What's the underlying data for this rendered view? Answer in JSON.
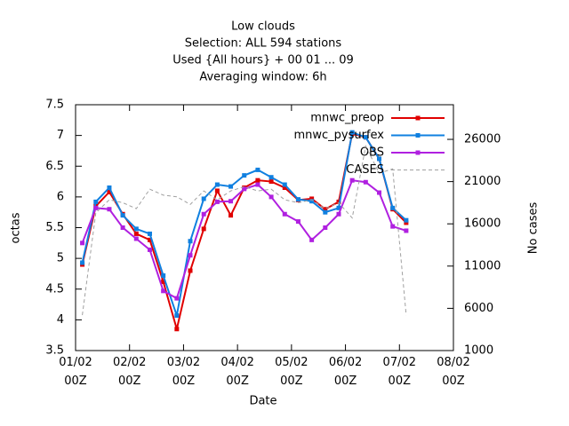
{
  "chart_data": {
    "type": "line",
    "title": [
      "Low clouds",
      "Selection: ALL    594 stations",
      "Used {All hours} + 00 01 ... 09",
      "Averaging window:  6h"
    ],
    "xlabel": "Date",
    "ylabel": "octas",
    "y2label": "No cases",
    "x": [
      3,
      9,
      15,
      21,
      27,
      33,
      39,
      45,
      51,
      57,
      63,
      69,
      75,
      81,
      87,
      93,
      99,
      105,
      111,
      117,
      123,
      129,
      135,
      141,
      147
    ],
    "xlim": [
      0,
      168
    ],
    "xticks": [
      {
        "value": 0,
        "label": "01/02\n00Z"
      },
      {
        "value": 24,
        "label": "02/02\n00Z"
      },
      {
        "value": 48,
        "label": "03/02\n00Z"
      },
      {
        "value": 72,
        "label": "04/02\n00Z"
      },
      {
        "value": 96,
        "label": "05/02\n00Z"
      },
      {
        "value": 120,
        "label": "06/02\n00Z"
      },
      {
        "value": 144,
        "label": "07/02\n00Z"
      },
      {
        "value": 168,
        "label": "08/02\n00Z"
      }
    ],
    "ylim": [
      3.5,
      7.5
    ],
    "yticks": [
      3.5,
      4,
      4.5,
      5,
      5.5,
      6,
      6.5,
      7,
      7.5
    ],
    "y2lim": [
      1000,
      30100
    ],
    "y2ticks": [
      1000,
      6000,
      11000,
      16000,
      21000,
      26000
    ],
    "legend": "top-right",
    "series": [
      {
        "name": "mnwc_preop",
        "color": "#e00000",
        "style": "linespoints",
        "values": [
          4.9,
          5.85,
          6.08,
          5.72,
          5.4,
          5.3,
          4.62,
          3.85,
          4.8,
          5.48,
          6.1,
          5.7,
          6.15,
          6.27,
          6.25,
          6.15,
          5.95,
          5.97,
          5.8,
          5.92,
          7.03,
          6.97,
          6.62,
          5.8,
          5.58
        ]
      },
      {
        "name": "mnwc_pysurfex",
        "color": "#1080e0",
        "style": "linespoints",
        "values": [
          4.93,
          5.92,
          6.15,
          5.7,
          5.48,
          5.4,
          4.72,
          4.07,
          5.28,
          5.97,
          6.2,
          6.17,
          6.35,
          6.44,
          6.32,
          6.2,
          5.96,
          5.93,
          5.75,
          5.82,
          7.05,
          6.97,
          6.62,
          5.82,
          5.62
        ]
      },
      {
        "name": "OBS",
        "color": "#b020e0",
        "style": "linespoints",
        "values": [
          5.25,
          5.82,
          5.8,
          5.5,
          5.32,
          5.14,
          4.47,
          4.35,
          5.05,
          5.72,
          5.92,
          5.93,
          6.13,
          6.2,
          6.0,
          5.72,
          5.6,
          5.3,
          5.5,
          5.72,
          6.27,
          6.24,
          6.07,
          5.52,
          5.45
        ]
      },
      {
        "name": "CASES",
        "color": "#a0a0a0",
        "style": "dashed",
        "axis": "y2",
        "values": [
          5200,
          17300,
          18850,
          18500,
          17800,
          20100,
          19400,
          19200,
          18300,
          19900,
          18850,
          19900,
          20400,
          19900,
          20100,
          18850,
          18500,
          18850,
          17800,
          18500,
          16700,
          25200,
          22000,
          22500,
          5200
        ]
      }
    ]
  }
}
